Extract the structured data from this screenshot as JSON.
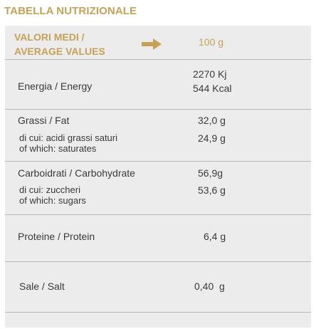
{
  "title": "TABELLA NUTRIZIONALE",
  "header": {
    "label_line1": "VALORI MEDI /",
    "label_line2": "AVERAGE VALUES",
    "value": "100 g",
    "arrow_icon": "arrow-right-icon"
  },
  "colors": {
    "accent": "#c5a258",
    "table_bg": "#ececec",
    "text": "#3a3a3a",
    "divider": "#b9b9b9"
  },
  "rows": {
    "energy": {
      "label": "Energia / Energy",
      "value_kj": "2270 Kj",
      "value_kcal": "544 Kcal"
    },
    "fat": {
      "label": "Grassi / Fat",
      "value": "32,0 g",
      "sub_label_line1": "di cui: acidi grassi saturi",
      "sub_label_line2": "of which: saturates",
      "sub_value": "24,9 g"
    },
    "carbs": {
      "label": "Carboidrati / Carbohydrate",
      "value": "56,9g",
      "sub_label_line1": "di cui: zuccheri",
      "sub_label_line2": "of which: sugars",
      "sub_value": "53,6 g"
    },
    "protein": {
      "label": "Proteine / Protein",
      "value": "6,4 g"
    },
    "salt": {
      "label": "Sale / Salt",
      "value": "0,40  g"
    }
  }
}
